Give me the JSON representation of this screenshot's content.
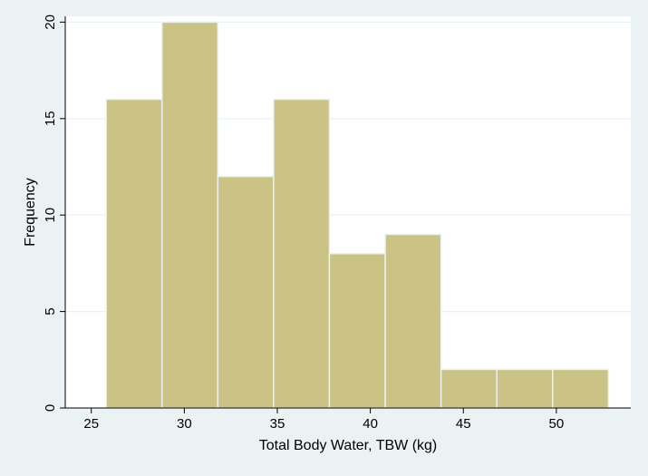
{
  "chart_data": {
    "type": "bar",
    "title": "",
    "xlabel": "Total Body Water, TBW (kg)",
    "ylabel": "Frequency",
    "bins": [
      {
        "x0": 25.8,
        "x1": 28.8,
        "value": 16
      },
      {
        "x0": 28.8,
        "x1": 31.8,
        "value": 20
      },
      {
        "x0": 31.8,
        "x1": 34.8,
        "value": 12
      },
      {
        "x0": 34.8,
        "x1": 37.8,
        "value": 16
      },
      {
        "x0": 37.8,
        "x1": 40.8,
        "value": 8
      },
      {
        "x0": 40.8,
        "x1": 43.8,
        "value": 9
      },
      {
        "x0": 43.8,
        "x1": 46.8,
        "value": 2
      },
      {
        "x0": 46.8,
        "x1": 49.8,
        "value": 2
      },
      {
        "x0": 49.8,
        "x1": 52.8,
        "value": 2
      }
    ],
    "xticks": [
      25,
      30,
      35,
      40,
      45,
      50
    ],
    "yticks": [
      0,
      5,
      10,
      15,
      20
    ],
    "xlim": [
      23.6,
      54.0
    ],
    "ylim": [
      0,
      20.3
    ],
    "grid": true,
    "colors": {
      "background": "#eaf2f3",
      "plot_background": "#ffffff",
      "bar_fill": "#cbc386",
      "bar_edge": "#eaf2f3",
      "grid": "#eaf2f3",
      "axis": "#000000"
    }
  }
}
